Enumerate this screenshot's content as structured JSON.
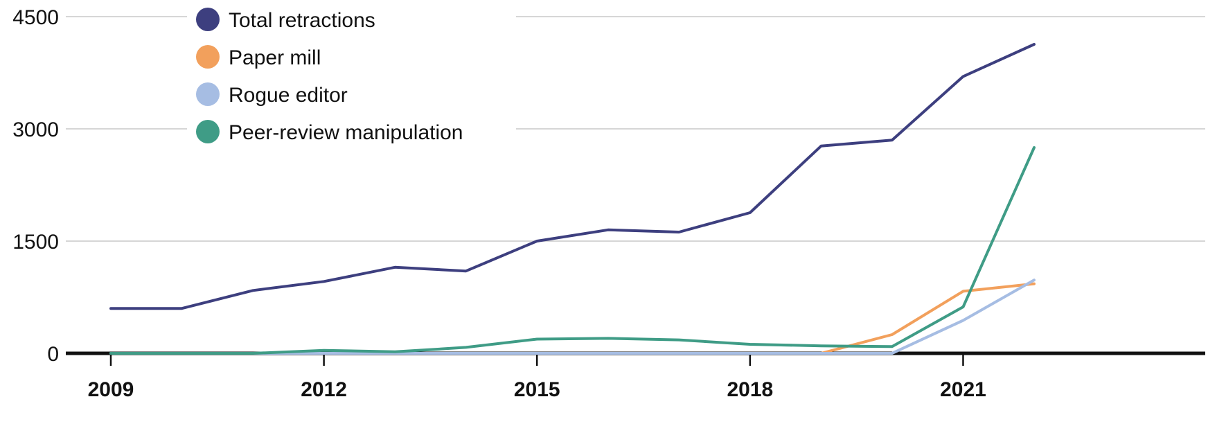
{
  "chart_data": {
    "type": "line",
    "x": [
      2009,
      2010,
      2011,
      2012,
      2013,
      2014,
      2015,
      2016,
      2017,
      2018,
      2019,
      2020,
      2021,
      2022
    ],
    "x_ticks": [
      "2009",
      "2012",
      "2015",
      "2018",
      "2021"
    ],
    "y_ticks": [
      "0",
      "1500",
      "3000",
      "4500"
    ],
    "ylim": [
      0,
      4500
    ],
    "grid": true,
    "legend_position": "top-left",
    "series": [
      {
        "name": "Total retractions",
        "color": "#3d3f7f",
        "values": [
          600,
          600,
          840,
          960,
          1150,
          1100,
          1500,
          1650,
          1620,
          1880,
          2770,
          2850,
          3700,
          4130
        ]
      },
      {
        "name": "Paper mill",
        "color": "#f2a05c",
        "values": [
          0,
          0,
          0,
          0,
          0,
          0,
          0,
          0,
          0,
          0,
          0,
          250,
          830,
          930
        ]
      },
      {
        "name": "Rogue editor",
        "color": "#a6bde3",
        "values": [
          0,
          0,
          0,
          0,
          0,
          0,
          0,
          0,
          0,
          0,
          0,
          0,
          440,
          980
        ]
      },
      {
        "name": "Peer-review manipulation",
        "color": "#3f9c86",
        "values": [
          0,
          0,
          0,
          40,
          20,
          80,
          190,
          200,
          180,
          120,
          100,
          90,
          620,
          2750
        ]
      }
    ]
  }
}
